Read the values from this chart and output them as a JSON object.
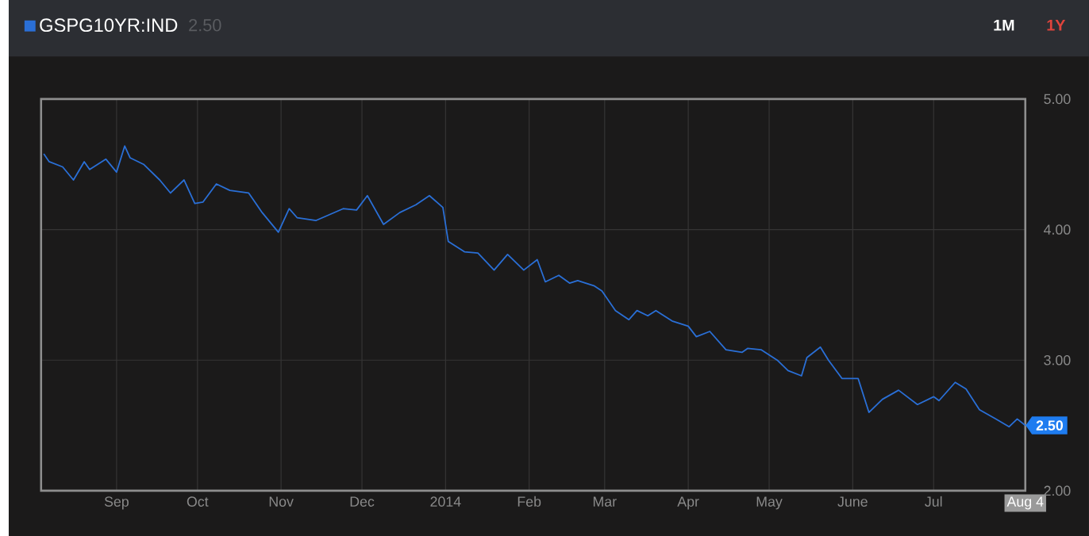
{
  "chart_data": {
    "type": "line",
    "title": "GSPG10YR:IND",
    "subtitle": "2.50",
    "annotations": [
      "1M",
      "1Y",
      {
        "text": "2.50",
        "x": "2014-08-04",
        "y": 2.5
      }
    ],
    "xlim": [
      "2013-08-04",
      "2014-08-04"
    ],
    "xticks": [
      {
        "value": "2013-09-01",
        "label": "Sep"
      },
      {
        "value": "2013-10-01",
        "label": "Oct"
      },
      {
        "value": "2013-11-01",
        "label": "Nov"
      },
      {
        "value": "2013-12-01",
        "label": "Dec"
      },
      {
        "value": "2014-01-01",
        "label": "2014"
      },
      {
        "value": "2014-02-01",
        "label": "Feb"
      },
      {
        "value": "2014-03-01",
        "label": "Mar"
      },
      {
        "value": "2014-04-01",
        "label": "Apr"
      },
      {
        "value": "2014-05-01",
        "label": "May"
      },
      {
        "value": "2014-06-01",
        "label": "June"
      },
      {
        "value": "2014-07-01",
        "label": "Jul"
      },
      {
        "value": "2014-08-04",
        "label": "Aug 4"
      }
    ],
    "ylim": [
      2,
      5
    ],
    "yticks": [
      {
        "value": 2,
        "label": "2.00"
      },
      {
        "value": 3,
        "label": "3.00"
      },
      {
        "value": 4,
        "label": "4.00"
      },
      {
        "value": 5,
        "label": "5.00"
      }
    ],
    "grid": true,
    "series": [
      {
        "color": "#2a6fd6",
        "x": [
          "2013-08-05",
          "2013-08-07",
          "2013-08-12",
          "2013-08-16",
          "2013-08-20",
          "2013-08-22",
          "2013-08-28",
          "2013-09-01",
          "2013-09-04",
          "2013-09-06",
          "2013-09-11",
          "2013-09-17",
          "2013-09-21",
          "2013-09-26",
          "2013-09-30",
          "2013-10-03",
          "2013-10-08",
          "2013-10-13",
          "2013-10-20",
          "2013-10-25",
          "2013-10-31",
          "2013-11-04",
          "2013-11-07",
          "2013-11-14",
          "2013-11-24",
          "2013-11-29",
          "2013-12-03",
          "2013-12-09",
          "2013-12-15",
          "2013-12-21",
          "2013-12-26",
          "2013-12-31",
          "2014-01-02",
          "2014-01-08",
          "2014-01-13",
          "2014-01-19",
          "2014-01-24",
          "2014-01-30",
          "2014-02-04",
          "2014-02-07",
          "2014-02-12",
          "2014-02-16",
          "2014-02-19",
          "2014-02-25",
          "2014-02-28",
          "2014-03-05",
          "2014-03-10",
          "2014-03-13",
          "2014-03-17",
          "2014-03-20",
          "2014-03-26",
          "2014-04-01",
          "2014-04-04",
          "2014-04-09",
          "2014-04-15",
          "2014-04-21",
          "2014-04-23",
          "2014-04-28",
          "2014-05-04",
          "2014-05-08",
          "2014-05-13",
          "2014-05-15",
          "2014-05-20",
          "2014-05-23",
          "2014-05-28",
          "2014-06-03",
          "2014-06-07",
          "2014-06-12",
          "2014-06-18",
          "2014-06-25",
          "2014-07-01",
          "2014-07-03",
          "2014-07-09",
          "2014-07-13",
          "2014-07-18",
          "2014-07-24",
          "2014-07-29",
          "2014-08-01",
          "2014-08-04"
        ],
        "values": [
          4.58,
          4.52,
          4.48,
          4.38,
          4.52,
          4.46,
          4.54,
          4.44,
          4.64,
          4.55,
          4.5,
          4.38,
          4.28,
          4.38,
          4.2,
          4.21,
          4.35,
          4.3,
          4.28,
          4.13,
          3.98,
          4.16,
          4.09,
          4.07,
          4.16,
          4.15,
          4.26,
          4.04,
          4.13,
          4.19,
          4.26,
          4.17,
          3.91,
          3.83,
          3.82,
          3.69,
          3.81,
          3.69,
          3.77,
          3.6,
          3.65,
          3.59,
          3.61,
          3.57,
          3.53,
          3.38,
          3.31,
          3.38,
          3.34,
          3.38,
          3.3,
          3.26,
          3.18,
          3.22,
          3.08,
          3.06,
          3.09,
          3.08,
          3.0,
          2.92,
          2.88,
          3.02,
          3.1,
          3.0,
          2.86,
          2.86,
          2.6,
          2.7,
          2.77,
          2.66,
          2.72,
          2.69,
          2.83,
          2.78,
          2.62,
          2.55,
          2.49,
          2.55,
          2.5
        ]
      }
    ]
  }
}
